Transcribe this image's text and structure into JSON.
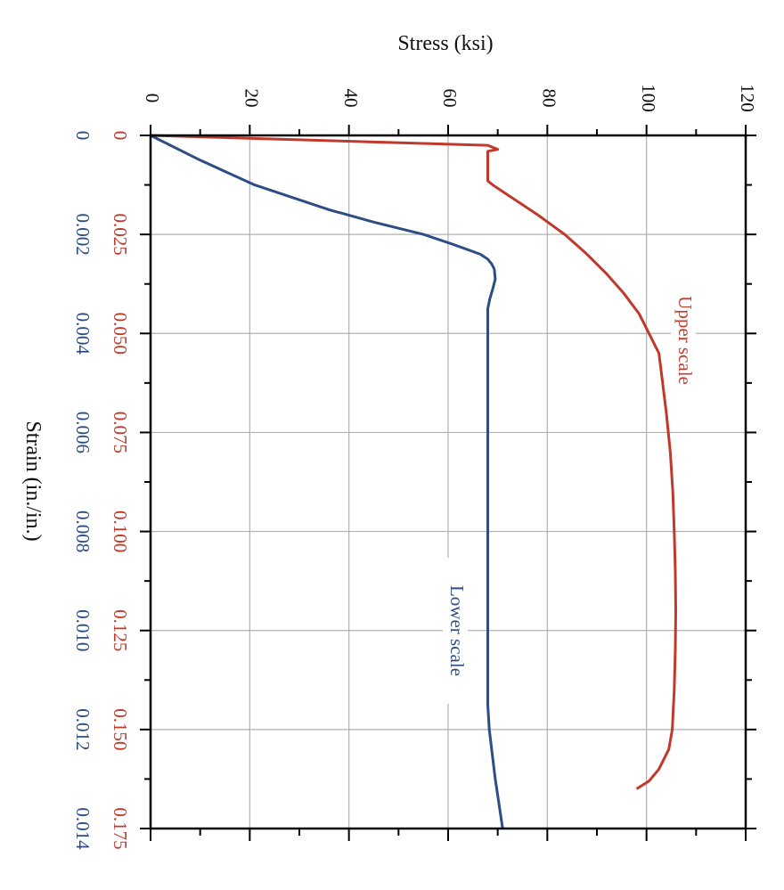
{
  "chart_data": {
    "type": "line",
    "orientation": "rotated-90-clockwise",
    "stress_axis": {
      "title": "Stress (ksi)",
      "range": [
        0,
        120
      ],
      "ticks": [
        0,
        20,
        40,
        60,
        80,
        100,
        120
      ]
    },
    "strain_axis": {
      "title": "Strain (in./in.)",
      "upper_scale": {
        "range": [
          0,
          0.175
        ],
        "ticks": [
          "0",
          "0.025",
          "0.050",
          "0.075",
          "0.100",
          "0.125",
          "0.150",
          "0.175"
        ],
        "color": "#c0392b"
      },
      "lower_scale": {
        "range": [
          0,
          0.014
        ],
        "ticks": [
          "0",
          "0.002",
          "0.004",
          "0.006",
          "0.008",
          "0.010",
          "0.012",
          "0.014"
        ],
        "color": "#2c4e85"
      }
    },
    "grid": true,
    "series": [
      {
        "name": "Upper scale",
        "scale": "upper",
        "color": "#c0392b",
        "points": [
          [
            0,
            0
          ],
          [
            0.0025,
            68
          ],
          [
            0.0035,
            70
          ],
          [
            0.004,
            68
          ],
          [
            0.006,
            68
          ],
          [
            0.0115,
            68
          ],
          [
            0.0125,
            69
          ],
          [
            0.015,
            72
          ],
          [
            0.02,
            78
          ],
          [
            0.025,
            83.5
          ],
          [
            0.03,
            88
          ],
          [
            0.035,
            92
          ],
          [
            0.04,
            95.5
          ],
          [
            0.045,
            98.5
          ],
          [
            0.05,
            100.5
          ],
          [
            0.055,
            102.5
          ],
          [
            0.06,
            103
          ],
          [
            0.07,
            104
          ],
          [
            0.08,
            104.8
          ],
          [
            0.09,
            105.3
          ],
          [
            0.1,
            105.6
          ],
          [
            0.11,
            105.8
          ],
          [
            0.12,
            105.9
          ],
          [
            0.13,
            105.8
          ],
          [
            0.14,
            105.6
          ],
          [
            0.15,
            105.2
          ],
          [
            0.155,
            104.5
          ],
          [
            0.16,
            102.5
          ],
          [
            0.163,
            100.5
          ],
          [
            0.165,
            98
          ]
        ]
      },
      {
        "name": "Lower scale",
        "scale": "lower",
        "color": "#2c4e85",
        "points": [
          [
            0,
            0
          ],
          [
            0.0005,
            10
          ],
          [
            0.001,
            21
          ],
          [
            0.0015,
            36
          ],
          [
            0.00175,
            45
          ],
          [
            0.002,
            55
          ],
          [
            0.0022,
            61
          ],
          [
            0.0024,
            66.5
          ],
          [
            0.0025,
            68
          ],
          [
            0.0026,
            68.8
          ],
          [
            0.0027,
            69.3
          ],
          [
            0.0029,
            69.5
          ],
          [
            0.0031,
            69
          ],
          [
            0.0033,
            68.4
          ],
          [
            0.0035,
            68
          ],
          [
            0.004,
            68
          ],
          [
            0.006,
            68
          ],
          [
            0.008,
            68
          ],
          [
            0.01,
            68
          ],
          [
            0.0115,
            68
          ],
          [
            0.012,
            68.3
          ],
          [
            0.013,
            69.5
          ],
          [
            0.014,
            71
          ]
        ]
      }
    ]
  }
}
